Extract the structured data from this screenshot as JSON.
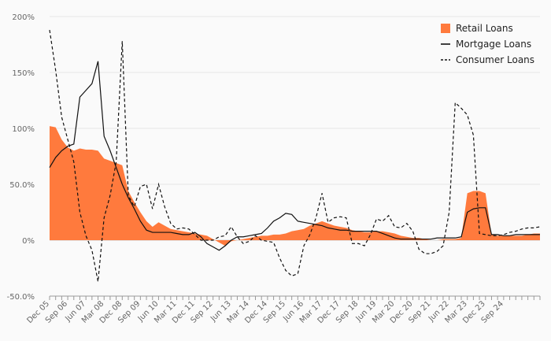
{
  "chart_data": {
    "type": "area",
    "title": "",
    "xlabel": "",
    "ylabel": "",
    "ylim": [
      -50,
      200
    ],
    "yticks": [
      -50,
      0,
      50,
      100,
      150,
      200
    ],
    "ytick_labels": [
      "-50.0%",
      "0%",
      "50.0%",
      "100%",
      "150%",
      "200%"
    ],
    "xticks": [
      "Dec 05",
      "Sep 06",
      "Jun 07",
      "Mar 08",
      "Dec 08",
      "Sep 09",
      "Jun 10",
      "Mar 11",
      "Dec 11",
      "Sep 12",
      "Jun 13",
      "Mar 14",
      "Dec 14",
      "Sep 15",
      "Jun 16",
      "Mar 17",
      "Dec 17",
      "Sep 18",
      "Jun 19",
      "Mar 20",
      "Dec 20",
      "Sep 21",
      "Jun 22",
      "Mar 23",
      "Dec 23",
      "Sep 24"
    ],
    "x_start": "Dec 05",
    "x_step_months": 3,
    "legend_position": "top-right",
    "grid": true,
    "series": [
      {
        "name": "Retail Loans",
        "kind": "area",
        "color": "#ff7a3d",
        "values": [
          102,
          101,
          90,
          83,
          80,
          82,
          81,
          81,
          80,
          73,
          71,
          69,
          67,
          44,
          34,
          25,
          17,
          12,
          16,
          13,
          10,
          9,
          8,
          7,
          6,
          5,
          4,
          1,
          -2,
          -5,
          -1,
          0,
          1,
          2,
          3,
          4,
          4,
          5,
          5,
          6,
          8,
          9,
          10,
          13,
          15,
          17,
          15,
          13,
          12,
          11,
          9,
          8,
          7,
          7,
          8,
          8,
          7,
          6,
          4,
          3,
          2,
          2,
          1,
          0,
          0,
          1,
          1,
          1,
          2,
          42,
          44,
          44,
          42,
          5,
          4,
          4,
          4,
          4,
          4,
          5,
          6,
          6
        ]
      },
      {
        "name": "Mortgage Loans",
        "kind": "line",
        "color": "#111111",
        "values": [
          65,
          74,
          80,
          84,
          86,
          128,
          134,
          140,
          160,
          93,
          80,
          65,
          50,
          38,
          28,
          17,
          9,
          7,
          7,
          7,
          7,
          6,
          5,
          5,
          7,
          3,
          -3,
          -6,
          -9,
          -5,
          0,
          3,
          3,
          4,
          5,
          6,
          11,
          17,
          20,
          24,
          23,
          17,
          16,
          15,
          14,
          13,
          11,
          10,
          9,
          9,
          8,
          8,
          8,
          8,
          8,
          6,
          4,
          2,
          1,
          1,
          1,
          1,
          1,
          1,
          2,
          2,
          2,
          2,
          3,
          25,
          28,
          29,
          29,
          5,
          5,
          4,
          4,
          5,
          5,
          5,
          5,
          5
        ]
      },
      {
        "name": "Consumer Loans",
        "kind": "dashed",
        "color": "#111111",
        "values": [
          188,
          152,
          110,
          90,
          70,
          25,
          4,
          -9,
          -37,
          20,
          40,
          70,
          178,
          40,
          30,
          48,
          50,
          28,
          50,
          30,
          15,
          10,
          11,
          10,
          5,
          0,
          0,
          0,
          3,
          4,
          12,
          3,
          -3,
          -1,
          4,
          0,
          -1,
          -2,
          -16,
          -27,
          -32,
          -30,
          -5,
          5,
          20,
          42,
          16,
          20,
          21,
          20,
          -3,
          -3,
          -5,
          5,
          19,
          17,
          22,
          12,
          11,
          15,
          8,
          -8,
          -12,
          -12,
          -10,
          -5,
          25,
          123,
          118,
          112,
          94,
          6,
          5,
          4,
          4,
          5,
          7,
          8,
          10,
          11,
          11,
          12
        ]
      }
    ]
  }
}
